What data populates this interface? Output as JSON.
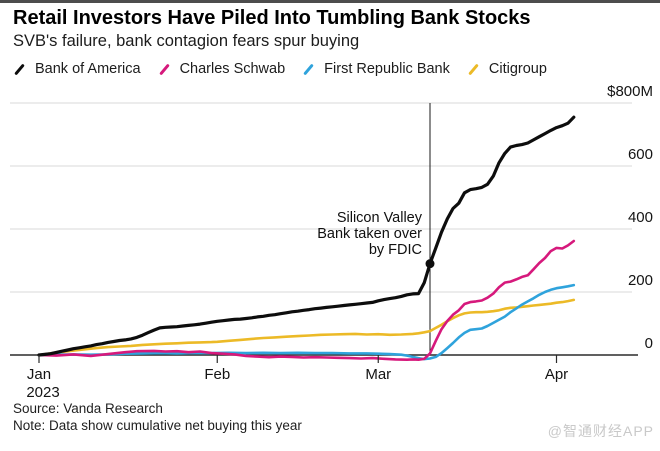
{
  "header": {
    "title": "Retail Investors Have Piled Into Tumbling Bank Stocks",
    "subtitle": "SVB's failure, bank contagion fears spur buying"
  },
  "footer": {
    "source": "Source: Vanda Research",
    "note": "Note: Data show cumulative net buying this year",
    "watermark": "@智通财经APP"
  },
  "chart_data": {
    "type": "line",
    "title": "Retail Investors Have Piled Into Tumbling Bank Stocks",
    "subtitle": "SVB's failure, bank contagion fears spur buying",
    "unit": "USD millions, cumulative net buying",
    "legend_position": "top",
    "grid": true,
    "x_axis": {
      "tick_labels": [
        "Jan",
        "Feb",
        "Mar",
        "Apr"
      ],
      "tick_days": [
        0,
        31,
        59,
        90
      ],
      "year_label": "2023",
      "domain_days": [
        0,
        93
      ]
    },
    "y_axis": {
      "ticks": [
        0,
        200,
        400,
        600,
        800
      ],
      "tick_labels": [
        "0",
        "200",
        "400",
        "600",
        "$800M"
      ],
      "range": [
        0,
        800
      ],
      "side": "right"
    },
    "event": {
      "day": 68,
      "marker_series": "Bank of America",
      "marker_value": 290,
      "label_lines": [
        "Silicon Valley",
        "Bank taken over",
        "by FDIC"
      ]
    },
    "series": [
      {
        "name": "Citigroup",
        "color": "#ecba27",
        "points": [
          [
            0,
            0
          ],
          [
            2,
            5
          ],
          [
            4,
            10
          ],
          [
            6,
            14
          ],
          [
            8,
            18
          ],
          [
            10,
            22
          ],
          [
            12,
            25
          ],
          [
            14,
            27
          ],
          [
            16,
            29
          ],
          [
            18,
            32
          ],
          [
            20,
            34
          ],
          [
            22,
            36
          ],
          [
            24,
            37
          ],
          [
            26,
            39
          ],
          [
            28,
            40
          ],
          [
            30,
            41
          ],
          [
            31,
            42
          ],
          [
            33,
            45
          ],
          [
            35,
            48
          ],
          [
            37,
            51
          ],
          [
            39,
            54
          ],
          [
            41,
            56
          ],
          [
            43,
            58
          ],
          [
            45,
            60
          ],
          [
            47,
            62
          ],
          [
            49,
            64
          ],
          [
            51,
            65
          ],
          [
            53,
            66
          ],
          [
            55,
            67
          ],
          [
            57,
            65
          ],
          [
            59,
            66
          ],
          [
            61,
            64
          ],
          [
            63,
            65
          ],
          [
            65,
            67
          ],
          [
            66,
            69
          ],
          [
            67,
            72
          ],
          [
            68,
            76
          ],
          [
            69,
            86
          ],
          [
            70,
            96
          ],
          [
            71,
            107
          ],
          [
            72,
            117
          ],
          [
            73,
            126
          ],
          [
            74,
            132
          ],
          [
            75,
            135
          ],
          [
            76,
            136
          ],
          [
            77,
            136
          ],
          [
            78,
            137
          ],
          [
            79,
            139
          ],
          [
            80,
            142
          ],
          [
            81,
            147
          ],
          [
            82,
            150
          ],
          [
            83,
            151
          ],
          [
            84,
            153
          ],
          [
            85,
            155
          ],
          [
            86,
            157
          ],
          [
            87,
            159
          ],
          [
            88,
            161
          ],
          [
            89,
            163
          ],
          [
            90,
            166
          ],
          [
            91,
            168
          ],
          [
            92,
            171
          ],
          [
            93,
            175
          ]
        ]
      },
      {
        "name": "First Republic Bank",
        "color": "#2fa3dc",
        "points": [
          [
            0,
            0
          ],
          [
            3,
            1
          ],
          [
            6,
            2
          ],
          [
            9,
            1
          ],
          [
            12,
            2
          ],
          [
            15,
            4
          ],
          [
            18,
            5
          ],
          [
            21,
            6
          ],
          [
            24,
            5
          ],
          [
            27,
            6
          ],
          [
            30,
            6
          ],
          [
            33,
            7
          ],
          [
            36,
            6
          ],
          [
            39,
            7
          ],
          [
            42,
            6
          ],
          [
            45,
            7
          ],
          [
            48,
            6
          ],
          [
            51,
            6
          ],
          [
            54,
            5
          ],
          [
            57,
            5
          ],
          [
            59,
            4
          ],
          [
            61,
            3
          ],
          [
            63,
            1
          ],
          [
            64,
            -2
          ],
          [
            65,
            -6
          ],
          [
            66,
            -10
          ],
          [
            67,
            -13
          ],
          [
            68,
            -11
          ],
          [
            69,
            -6
          ],
          [
            70,
            6
          ],
          [
            71,
            22
          ],
          [
            72,
            38
          ],
          [
            73,
            56
          ],
          [
            74,
            70
          ],
          [
            75,
            80
          ],
          [
            76,
            82
          ],
          [
            77,
            84
          ],
          [
            78,
            92
          ],
          [
            79,
            102
          ],
          [
            80,
            112
          ],
          [
            81,
            122
          ],
          [
            82,
            136
          ],
          [
            83,
            148
          ],
          [
            84,
            160
          ],
          [
            85,
            170
          ],
          [
            86,
            180
          ],
          [
            87,
            191
          ],
          [
            88,
            200
          ],
          [
            89,
            207
          ],
          [
            90,
            212
          ],
          [
            91,
            215
          ],
          [
            92,
            218
          ],
          [
            93,
            222
          ]
        ]
      },
      {
        "name": "Charles Schwab",
        "color": "#d6197c",
        "points": [
          [
            0,
            0
          ],
          [
            3,
            -2
          ],
          [
            6,
            2
          ],
          [
            9,
            -3
          ],
          [
            12,
            3
          ],
          [
            15,
            9
          ],
          [
            17,
            12
          ],
          [
            20,
            13
          ],
          [
            22,
            11
          ],
          [
            24,
            12
          ],
          [
            26,
            9
          ],
          [
            28,
            11
          ],
          [
            30,
            6
          ],
          [
            32,
            4
          ],
          [
            34,
            2
          ],
          [
            36,
            -3
          ],
          [
            38,
            -5
          ],
          [
            40,
            -7
          ],
          [
            42,
            -5
          ],
          [
            44,
            -6
          ],
          [
            46,
            -8
          ],
          [
            48,
            -7
          ],
          [
            50,
            -8
          ],
          [
            52,
            -9
          ],
          [
            54,
            -10
          ],
          [
            56,
            -11
          ],
          [
            58,
            -10
          ],
          [
            60,
            -12
          ],
          [
            62,
            -14
          ],
          [
            64,
            -15
          ],
          [
            65,
            -14
          ],
          [
            66,
            -15
          ],
          [
            67,
            -12
          ],
          [
            68,
            5
          ],
          [
            69,
            45
          ],
          [
            70,
            82
          ],
          [
            71,
            108
          ],
          [
            72,
            128
          ],
          [
            73,
            142
          ],
          [
            74,
            162
          ],
          [
            75,
            168
          ],
          [
            76,
            170
          ],
          [
            77,
            173
          ],
          [
            78,
            182
          ],
          [
            79,
            195
          ],
          [
            80,
            215
          ],
          [
            81,
            230
          ],
          [
            82,
            233
          ],
          [
            83,
            240
          ],
          [
            84,
            248
          ],
          [
            85,
            253
          ],
          [
            86,
            272
          ],
          [
            87,
            292
          ],
          [
            88,
            308
          ],
          [
            89,
            330
          ],
          [
            90,
            340
          ],
          [
            91,
            338
          ],
          [
            92,
            348
          ],
          [
            93,
            362
          ]
        ]
      },
      {
        "name": "Bank of America",
        "color": "#0d0d0d",
        "points": [
          [
            0,
            0
          ],
          [
            1,
            2
          ],
          [
            2,
            4
          ],
          [
            3,
            8
          ],
          [
            4,
            12
          ],
          [
            5,
            16
          ],
          [
            6,
            20
          ],
          [
            7,
            23
          ],
          [
            8,
            26
          ],
          [
            9,
            29
          ],
          [
            10,
            33
          ],
          [
            11,
            36
          ],
          [
            12,
            40
          ],
          [
            13,
            43
          ],
          [
            14,
            46
          ],
          [
            15,
            48
          ],
          [
            16,
            51
          ],
          [
            17,
            56
          ],
          [
            18,
            63
          ],
          [
            19,
            71
          ],
          [
            20,
            79
          ],
          [
            21,
            86
          ],
          [
            22,
            88
          ],
          [
            23,
            89
          ],
          [
            24,
            90
          ],
          [
            25,
            92
          ],
          [
            26,
            94
          ],
          [
            27,
            96
          ],
          [
            28,
            98
          ],
          [
            29,
            101
          ],
          [
            30,
            104
          ],
          [
            31,
            107
          ],
          [
            32,
            109
          ],
          [
            33,
            111
          ],
          [
            34,
            113
          ],
          [
            35,
            114
          ],
          [
            36,
            116
          ],
          [
            37,
            118
          ],
          [
            38,
            121
          ],
          [
            39,
            123
          ],
          [
            40,
            126
          ],
          [
            41,
            128
          ],
          [
            42,
            131
          ],
          [
            43,
            134
          ],
          [
            44,
            137
          ],
          [
            45,
            139
          ],
          [
            46,
            142
          ],
          [
            47,
            144
          ],
          [
            48,
            147
          ],
          [
            49,
            149
          ],
          [
            50,
            151
          ],
          [
            51,
            153
          ],
          [
            52,
            155
          ],
          [
            53,
            157
          ],
          [
            54,
            159
          ],
          [
            55,
            161
          ],
          [
            56,
            163
          ],
          [
            57,
            165
          ],
          [
            58,
            167
          ],
          [
            59,
            172
          ],
          [
            60,
            176
          ],
          [
            61,
            179
          ],
          [
            62,
            182
          ],
          [
            63,
            186
          ],
          [
            64,
            191
          ],
          [
            65,
            194
          ],
          [
            66,
            195
          ],
          [
            67,
            230
          ],
          [
            68,
            290
          ],
          [
            69,
            340
          ],
          [
            70,
            390
          ],
          [
            71,
            432
          ],
          [
            72,
            465
          ],
          [
            73,
            482
          ],
          [
            74,
            515
          ],
          [
            75,
            525
          ],
          [
            76,
            528
          ],
          [
            77,
            532
          ],
          [
            78,
            542
          ],
          [
            79,
            568
          ],
          [
            80,
            610
          ],
          [
            81,
            640
          ],
          [
            82,
            660
          ],
          [
            83,
            665
          ],
          [
            84,
            668
          ],
          [
            85,
            673
          ],
          [
            86,
            683
          ],
          [
            87,
            693
          ],
          [
            88,
            703
          ],
          [
            89,
            713
          ],
          [
            90,
            722
          ],
          [
            91,
            728
          ],
          [
            92,
            736
          ],
          [
            93,
            755
          ]
        ]
      }
    ]
  }
}
